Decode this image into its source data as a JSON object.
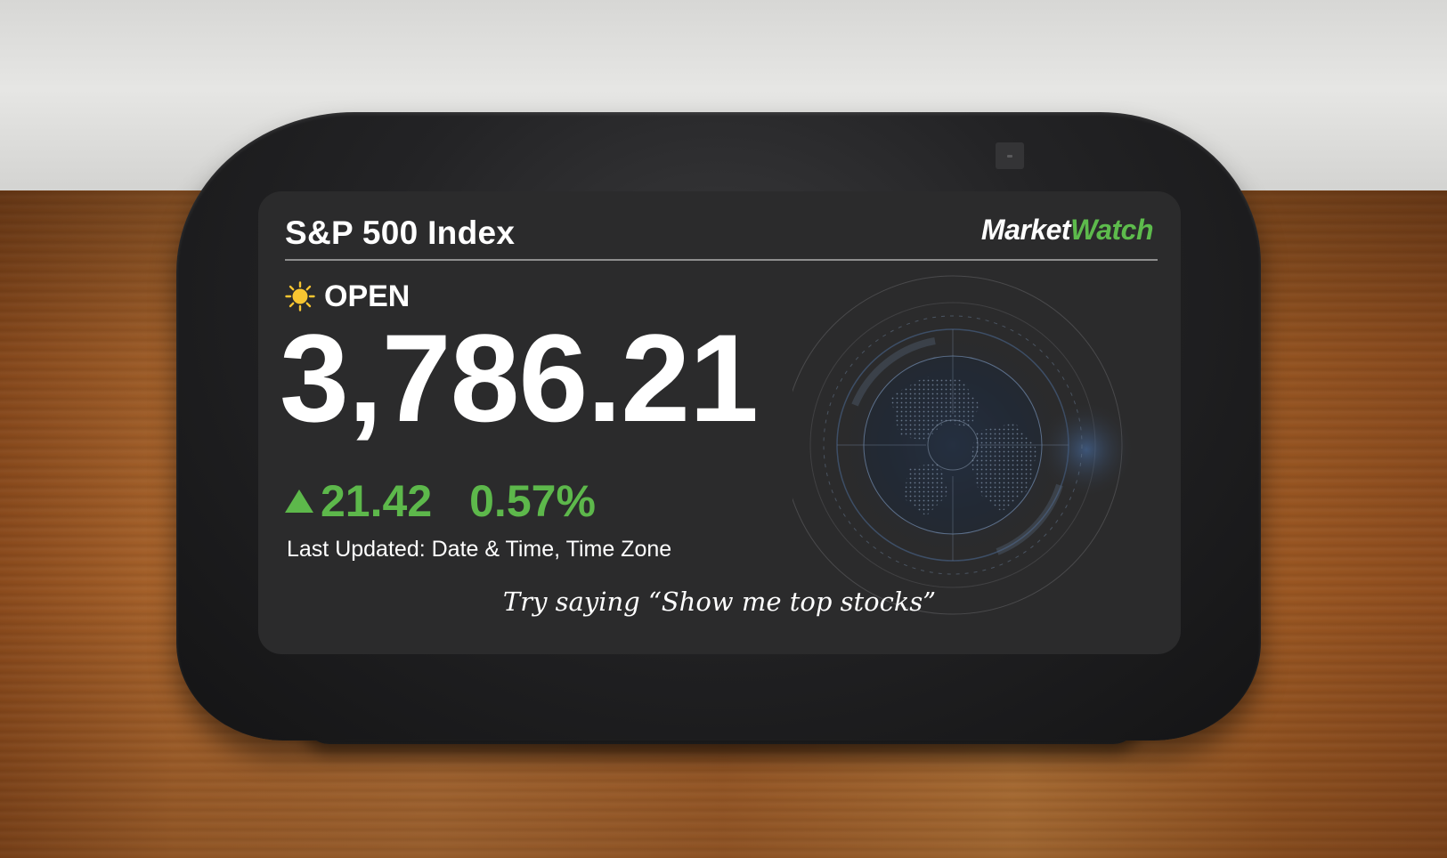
{
  "card": {
    "title": "S&P 500 Index",
    "brand_part1": "Market",
    "brand_part2": "Watch",
    "status_icon": "sun-icon",
    "market_status": "OPEN",
    "price": "3,786.21",
    "change_icon": "triangle-up-icon",
    "change_points": "21.42",
    "change_percent": "0.57%",
    "last_updated": "Last Updated: Date & Time, Time Zone",
    "hint": "Try saying “Show me top stocks”"
  },
  "colors": {
    "accent_green": "#5db84b",
    "screen_bg": "#2b2b2c",
    "text": "#ffffff",
    "sun": "#f7c531"
  }
}
